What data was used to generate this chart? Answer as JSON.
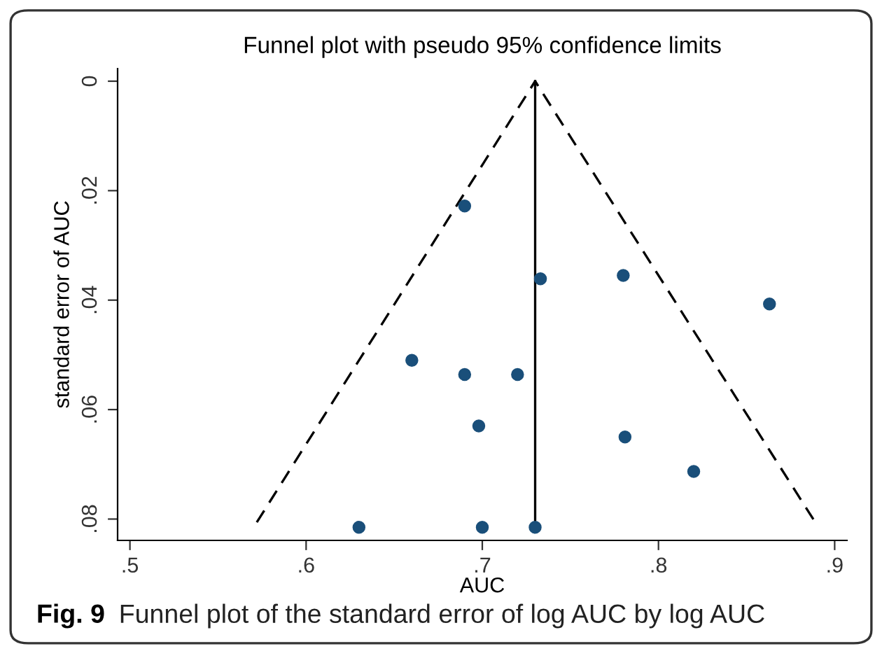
{
  "chart_data": {
    "type": "scatter",
    "title": "Funnel plot with pseudo 95% confidence limits",
    "xlabel": "AUC",
    "ylabel": "standard error of AUC",
    "annotations": [
      "Fig. 9",
      "Funnel plot of the standard error of log AUC by log AUC"
    ],
    "series": [
      {
        "type": "line",
        "x": [
          0.572,
          0.73,
          0.889
        ],
        "values": [
          0.0806,
          0,
          0.0806
        ],
        "color": "#000000",
        "line_style": "dashed",
        "marker": "none"
      },
      {
        "type": "line",
        "x": [
          0.73,
          0.73
        ],
        "values": [
          0,
          0.0815
        ],
        "color": "#000000",
        "line_style": "solid",
        "marker": "none"
      },
      {
        "x": [
          0.69,
          0.733,
          0.78,
          0.863,
          0.66,
          0.69,
          0.72,
          0.698,
          0.781,
          0.82,
          0.63,
          0.7,
          0.73
        ],
        "values": [
          0.0228,
          0.0361,
          0.0355,
          0.0407,
          0.051,
          0.0536,
          0.0536,
          0.063,
          0.065,
          0.0713,
          0.0815,
          0.0815,
          0.0815
        ],
        "color": "#1a4f7a",
        "marker": "circle"
      }
    ],
    "xlim": [
      0.493,
      0.907
    ],
    "ylim": [
      0.0839,
      -0.0023
    ],
    "xticks": [
      {
        "value": 0.5,
        "label": ".5"
      },
      {
        "value": 0.6,
        "label": ".6"
      },
      {
        "value": 0.7,
        "label": ".7"
      },
      {
        "value": 0.8,
        "label": ".8"
      },
      {
        "value": 0.9,
        "label": ".9"
      }
    ],
    "yticks": [
      0,
      {
        "value": 0.02,
        "label": ".02"
      },
      {
        "value": 0.04,
        "label": ".04"
      },
      {
        "value": 0.06,
        "label": ".06"
      },
      {
        "value": 0.08,
        "label": ".08"
      }
    ],
    "grid": false,
    "legend": false
  }
}
